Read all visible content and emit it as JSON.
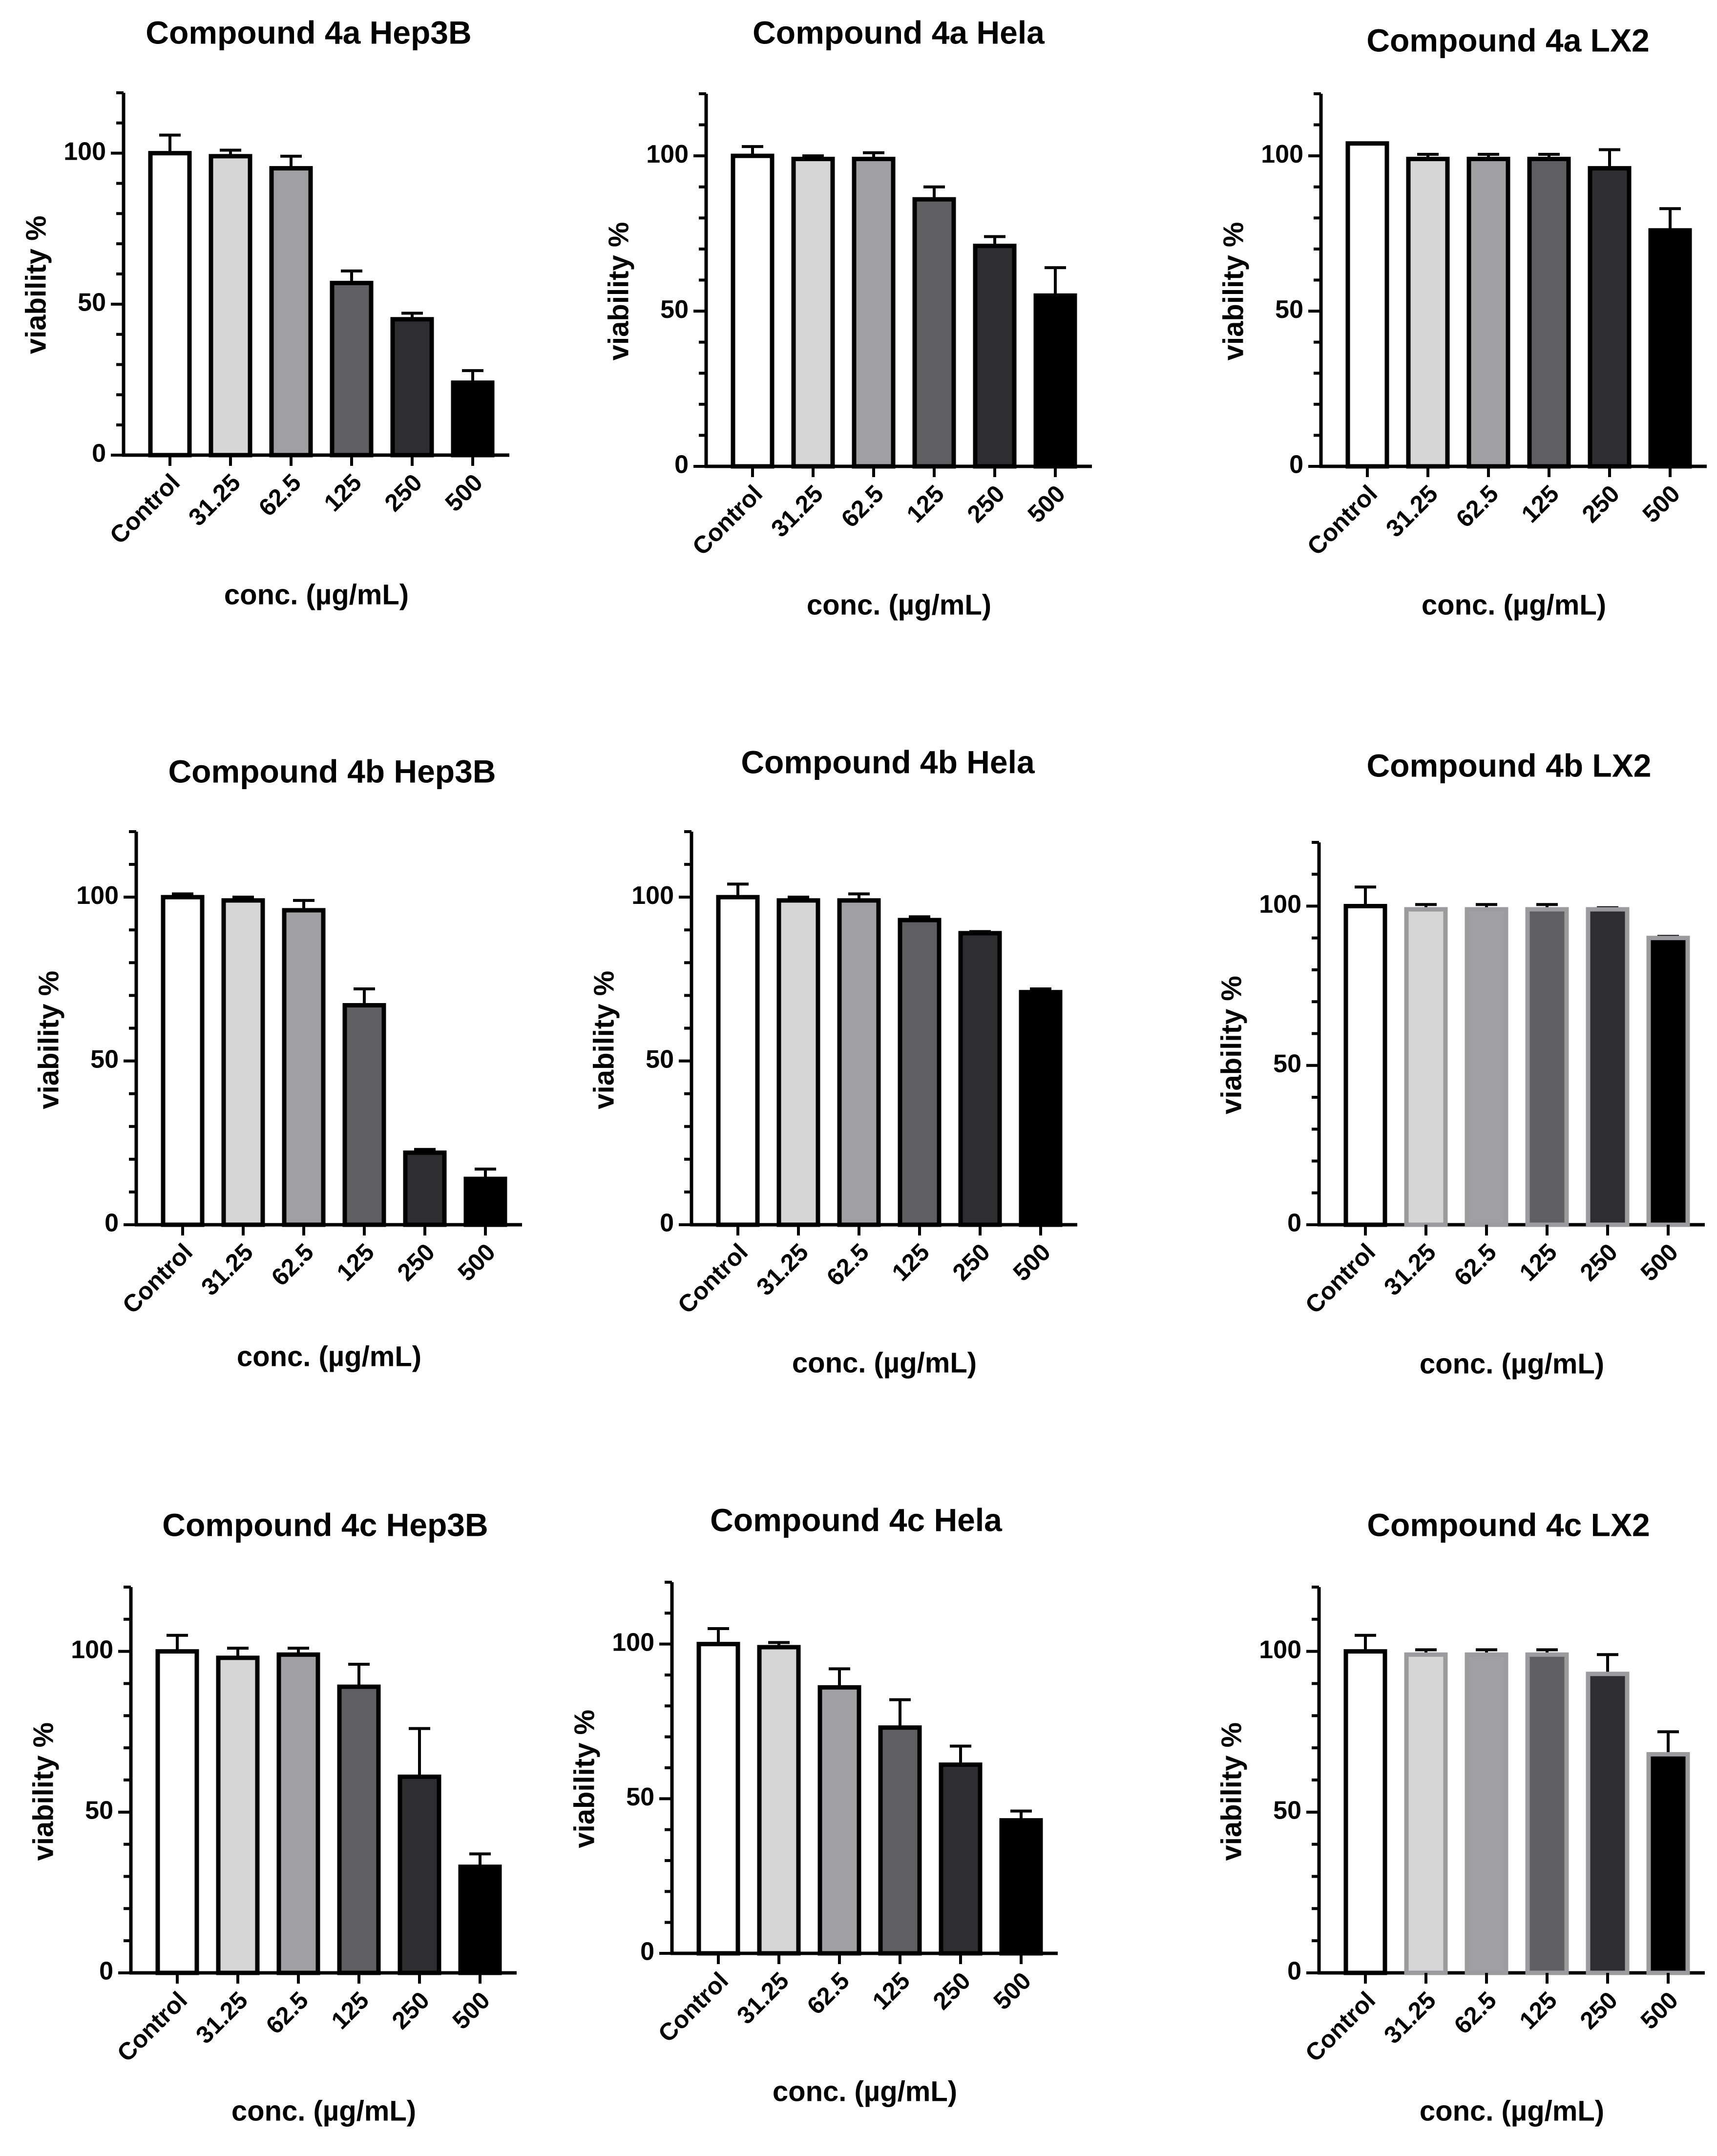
{
  "colors": {
    "control": "#ffffff",
    "c31": "#d6d6d6",
    "c62": "#a0a0a2",
    "c125": "#5f5f61",
    "c250": "#2e2e30",
    "c500": "#000000",
    "border_dark": "#000000",
    "border_light": "#9b9b9d"
  },
  "chart_data": [
    {
      "type": "bar",
      "title": "Compound 4a Hep3B",
      "xlabel": "conc. (µg/mL)",
      "ylabel": "viability %",
      "categories": [
        "Control",
        "31.25",
        "62.5",
        "125",
        "250",
        "500"
      ],
      "values": [
        100,
        99,
        95,
        57,
        45,
        24
      ],
      "errors": [
        6,
        2,
        4,
        4,
        2,
        4
      ],
      "ylim": [
        0,
        120
      ],
      "yticks": [
        "0",
        "50",
        "100"
      ],
      "outline": "dark"
    },
    {
      "type": "bar",
      "title": "Compound 4a Hela",
      "xlabel": "conc. (µg/mL)",
      "ylabel": "viability %",
      "categories": [
        "Control",
        "31.25",
        "62.5",
        "125",
        "250",
        "500"
      ],
      "values": [
        100,
        99,
        99,
        86,
        71,
        55
      ],
      "errors": [
        3,
        1,
        2,
        4,
        3,
        9
      ],
      "ylim": [
        0,
        120
      ],
      "yticks": [
        "0",
        "50",
        "100"
      ],
      "outline": "dark"
    },
    {
      "type": "bar",
      "title": "Compound 4a LX2",
      "xlabel": "conc. (µg/mL)",
      "ylabel": "viability %",
      "categories": [
        "Control",
        "31.25",
        "62.5",
        "125",
        "250",
        "500"
      ],
      "values": [
        104,
        99,
        99,
        99,
        96,
        76
      ],
      "errors": [
        0,
        1.5,
        1.5,
        1.5,
        6,
        7
      ],
      "ylim": [
        0,
        120
      ],
      "yticks": [
        "0",
        "50",
        "100"
      ],
      "outline": "dark"
    },
    {
      "type": "bar",
      "title": "Compound 4b Hep3B",
      "xlabel": "conc. (µg/mL)",
      "ylabel": "viability %",
      "categories": [
        "Control",
        "31.25",
        "62.5",
        "125",
        "250",
        "500"
      ],
      "values": [
        100,
        99,
        96,
        67,
        22,
        14
      ],
      "errors": [
        1,
        1,
        3,
        5,
        1,
        3
      ],
      "ylim": [
        0,
        120
      ],
      "yticks": [
        "0",
        "50",
        "100"
      ],
      "outline": "dark"
    },
    {
      "type": "bar",
      "title": "Compound 4b Hela",
      "xlabel": "conc. (µg/mL)",
      "ylabel": "viability %",
      "categories": [
        "Control",
        "31.25",
        "62.5",
        "125",
        "250",
        "500"
      ],
      "values": [
        100,
        99,
        99,
        93,
        89,
        71
      ],
      "errors": [
        4,
        1,
        2,
        1,
        0.5,
        1
      ],
      "ylim": [
        0,
        120
      ],
      "yticks": [
        "0",
        "50",
        "100"
      ],
      "outline": "dark"
    },
    {
      "type": "bar",
      "title": "Compound 4b LX2",
      "xlabel": "conc. (µg/mL)",
      "ylabel": "viability %",
      "categories": [
        "Control",
        "31.25",
        "62.5",
        "125",
        "250",
        "500"
      ],
      "values": [
        100,
        99,
        99,
        99,
        99,
        90
      ],
      "errors": [
        6,
        1.5,
        1.5,
        1.5,
        0.5,
        0.5
      ],
      "ylim": [
        0,
        120
      ],
      "yticks": [
        "0",
        "50",
        "100"
      ],
      "outline": "light"
    },
    {
      "type": "bar",
      "title": "Compound 4c Hep3B",
      "xlabel": "conc. (µg/mL)",
      "ylabel": "viability %",
      "categories": [
        "Control",
        "31.25",
        "62.5",
        "125",
        "250",
        "500"
      ],
      "values": [
        100,
        98,
        99,
        89,
        61,
        33
      ],
      "errors": [
        5,
        3,
        2,
        7,
        15,
        4
      ],
      "ylim": [
        0,
        120
      ],
      "yticks": [
        "0",
        "50",
        "100"
      ],
      "outline": "dark"
    },
    {
      "type": "bar",
      "title": "Compound 4c Hela",
      "xlabel": "conc. (µg/mL)",
      "ylabel": "viability %",
      "categories": [
        "Control",
        "31.25",
        "62.5",
        "125",
        "250",
        "500"
      ],
      "values": [
        100,
        99,
        86,
        73,
        61,
        43
      ],
      "errors": [
        5,
        1.5,
        6,
        9,
        6,
        3
      ],
      "ylim": [
        0,
        120
      ],
      "yticks": [
        "0",
        "50",
        "100"
      ],
      "outline": "dark"
    },
    {
      "type": "bar",
      "title": "Compound 4c LX2",
      "xlabel": "conc. (µg/mL)",
      "ylabel": "viability %",
      "categories": [
        "Control",
        "31.25",
        "62.5",
        "125",
        "250",
        "500"
      ],
      "values": [
        100,
        99,
        99,
        99,
        93,
        68
      ],
      "errors": [
        5,
        1.5,
        1.5,
        1.5,
        6,
        7
      ],
      "ylim": [
        0,
        120
      ],
      "yticks": [
        "0",
        "50",
        "100"
      ],
      "outline": "light"
    }
  ]
}
